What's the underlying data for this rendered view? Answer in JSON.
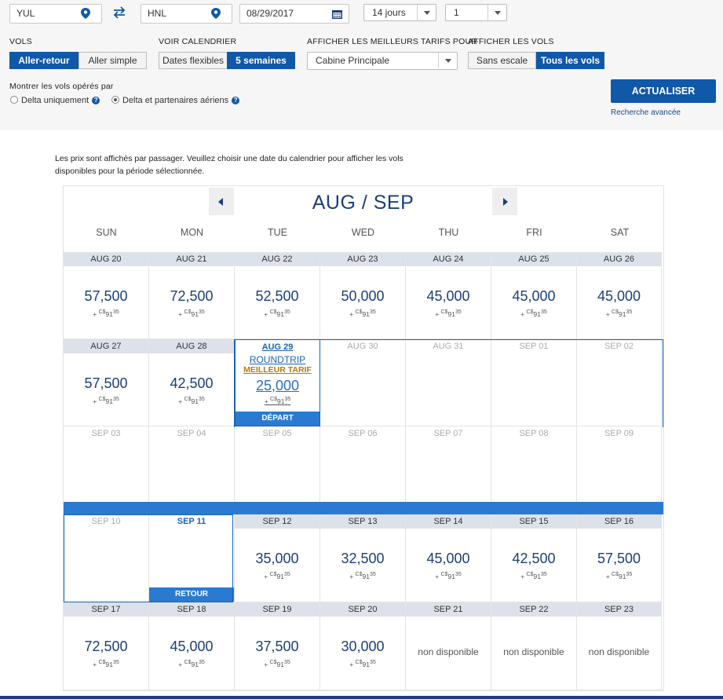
{
  "search": {
    "from": "YUL",
    "to": "HNL",
    "date": "08/29/2017",
    "duration": "14 jours",
    "passengers": "1"
  },
  "filters": {
    "vols_label": "VOLS",
    "roundtrip": "Aller-retour",
    "oneway": "Aller simple",
    "calendar_label": "VOIR CALENDRIER",
    "flexible": "Dates flexibles",
    "five_weeks": "5 semaines",
    "fares_label": "AFFICHER LES MEILLEURS TARIFS POUR",
    "cabin": "Cabine Principale",
    "flights_label": "AFFICHER LES VOLS",
    "nonstop": "Sans escale",
    "all_flights": "Tous les vols",
    "operated_label": "Montrer les vols opérés par",
    "delta_only": "Delta uniquement",
    "delta_partners": "Delta et partenaires aériens",
    "update": "ACTUALISER",
    "advanced": "Recherche avancée",
    "question": "?"
  },
  "info": "Les prix sont affichés par passager. Veuillez choisir une date du calendrier pour afficher les vols disponibles pour la période sélectionnée.",
  "calendar": {
    "month_title": "AUG / SEP",
    "days": [
      "SUN",
      "MON",
      "TUE",
      "WED",
      "THU",
      "FRI",
      "SAT"
    ],
    "tax_prefix": "+",
    "tax_currency": "C$",
    "tax_amount": "91",
    "tax_cents": "35",
    "week1": [
      {
        "date": "AUG 20",
        "price": "57,500"
      },
      {
        "date": "AUG 21",
        "price": "72,500"
      },
      {
        "date": "AUG 22",
        "price": "52,500"
      },
      {
        "date": "AUG 23",
        "price": "50,000"
      },
      {
        "date": "AUG 24",
        "price": "45,000"
      },
      {
        "date": "AUG 25",
        "price": "45,000"
      },
      {
        "date": "AUG 26",
        "price": "45,000"
      }
    ],
    "week2": [
      {
        "date": "AUG 27",
        "price": "57,500"
      },
      {
        "date": "AUG 28",
        "price": "42,500"
      },
      {
        "date": "AUG 29",
        "price": "25,000",
        "roundtrip": "ROUNDTRIP",
        "best": "MEILLEUR TARIF",
        "bar": "DÉPART"
      },
      {
        "date": "AUG 30"
      },
      {
        "date": "AUG 31"
      },
      {
        "date": "SEP 01"
      },
      {
        "date": "SEP 02"
      }
    ],
    "week3": [
      {
        "date": "SEP 03"
      },
      {
        "date": "SEP 04"
      },
      {
        "date": "SEP 05"
      },
      {
        "date": "SEP 06"
      },
      {
        "date": "SEP 07"
      },
      {
        "date": "SEP 08"
      },
      {
        "date": "SEP 09"
      }
    ],
    "week4": [
      {
        "date": "SEP 10"
      },
      {
        "date": "SEP 11",
        "bar": "RETOUR"
      },
      {
        "date": "SEP 12",
        "price": "35,000"
      },
      {
        "date": "SEP 13",
        "price": "32,500"
      },
      {
        "date": "SEP 14",
        "price": "45,000"
      },
      {
        "date": "SEP 15",
        "price": "42,500"
      },
      {
        "date": "SEP 16",
        "price": "57,500"
      }
    ],
    "week5": [
      {
        "date": "SEP 17",
        "price": "72,500"
      },
      {
        "date": "SEP 18",
        "price": "45,000"
      },
      {
        "date": "SEP 19",
        "price": "37,500"
      },
      {
        "date": "SEP 20",
        "price": "30,000"
      },
      {
        "date": "SEP 21",
        "na": "non disponible"
      },
      {
        "date": "SEP 22",
        "na": "non disponible"
      },
      {
        "date": "SEP 23",
        "na": "non disponible"
      }
    ]
  }
}
